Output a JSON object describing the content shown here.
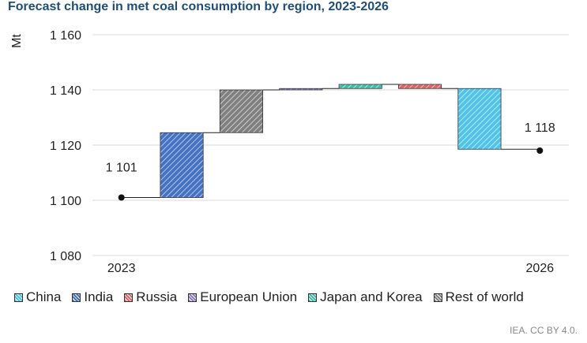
{
  "title": "Forecast change in met coal consumption by region, 2023-2026",
  "credit": "IEA. CC BY 4.0.",
  "chart_data": {
    "type": "bar",
    "subtype": "waterfall",
    "ylabel": "Mt",
    "ylim": [
      1080,
      1160
    ],
    "yticks": [
      1080,
      1100,
      1120,
      1140,
      1160
    ],
    "ytick_labels": [
      "1 080",
      "1 100",
      "1 120",
      "1 140",
      "1 160"
    ],
    "grid": true,
    "legend_position": "bottom",
    "start": {
      "label": "2023",
      "value": 1101,
      "value_label": "1 101"
    },
    "end": {
      "label": "2026",
      "value": 1118,
      "value_label": "1 118"
    },
    "steps": [
      {
        "name": "India",
        "from": 1101,
        "to": 1124.5,
        "color": "#4472c4"
      },
      {
        "name": "Rest of world",
        "from": 1124.5,
        "to": 1140,
        "color": "#808080"
      },
      {
        "name": "European Union",
        "from": 1140,
        "to": 1140.5,
        "color": "#8e7cc3"
      },
      {
        "name": "Japan and Korea",
        "from": 1140.5,
        "to": 1142,
        "color": "#3cbfae"
      },
      {
        "name": "Russia",
        "from": 1142,
        "to": 1140.5,
        "color": "#e06666"
      },
      {
        "name": "China",
        "from": 1140.5,
        "to": 1118.5,
        "color": "#4fc3e8"
      }
    ],
    "legend": [
      {
        "name": "China",
        "color": "#4fc3e8"
      },
      {
        "name": "India",
        "color": "#4472c4"
      },
      {
        "name": "Russia",
        "color": "#e06666"
      },
      {
        "name": "European Union",
        "color": "#8e7cc3"
      },
      {
        "name": "Japan and Korea",
        "color": "#3cbfae"
      },
      {
        "name": "Rest of world",
        "color": "#808080"
      }
    ]
  }
}
